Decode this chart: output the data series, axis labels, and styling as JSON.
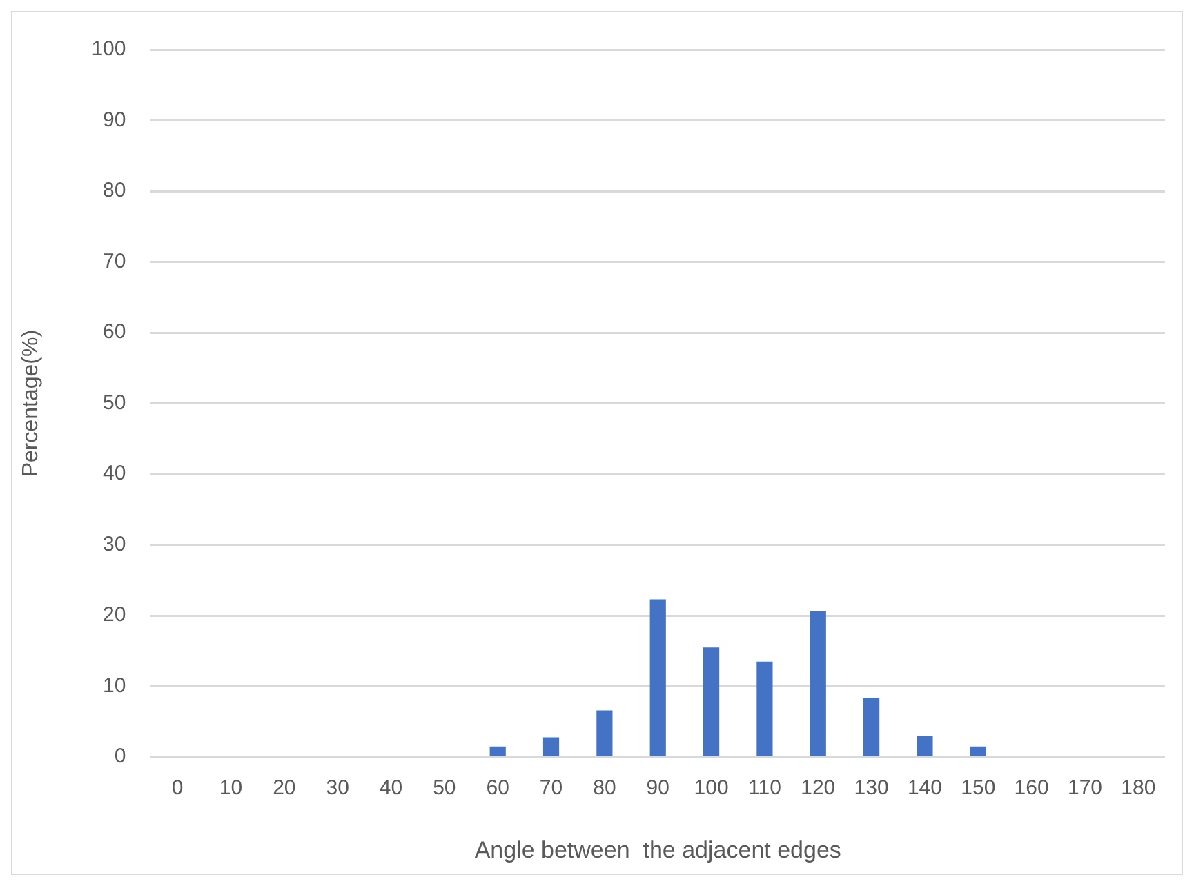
{
  "chart_data": {
    "type": "bar",
    "xlabel": "Angle between  the adjacent edges",
    "ylabel": "Percentage(%)",
    "categories": [
      "0",
      "10",
      "20",
      "30",
      "40",
      "50",
      "60",
      "70",
      "80",
      "90",
      "100",
      "110",
      "120",
      "130",
      "140",
      "150",
      "160",
      "170",
      "180"
    ],
    "values": [
      0,
      0,
      0,
      0,
      0,
      0,
      1.5,
      2.8,
      6.6,
      22.3,
      15.5,
      13.5,
      20.6,
      8.4,
      3,
      1.5,
      0,
      0,
      0
    ],
    "color": "#4472c4",
    "ylim": [
      0,
      100
    ],
    "yticks": [
      0,
      10,
      20,
      30,
      40,
      50,
      60,
      70,
      80,
      90,
      100
    ],
    "grid": "y",
    "legend": false
  }
}
